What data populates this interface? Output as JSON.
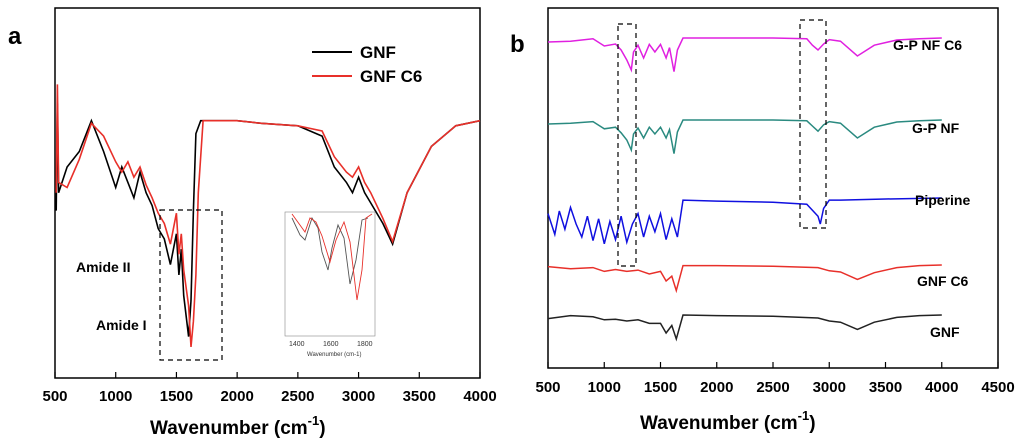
{
  "panel_a": {
    "label": "a",
    "xlabel": "Wavenumber (cm",
    "xlabel_sup": "-1",
    "xlabel_tail": ")",
    "xticks": [
      "500",
      "1000",
      "1500",
      "2000",
      "2500",
      "3000",
      "3500",
      "4000"
    ],
    "legend": [
      {
        "name": "GNF",
        "color": "#000000"
      },
      {
        "name": "GNF C6",
        "color": "#e8302a"
      }
    ],
    "annotations": {
      "amide_ii": "Amide II",
      "amide_i": "Amide I"
    },
    "inset_xticks": [
      "1400",
      "1600",
      "1800"
    ],
    "inset_xlabel": "Wavenumber (cm-1)"
  },
  "panel_b": {
    "label": "b",
    "xlabel": "Wavenumber (cm",
    "xlabel_sup": "-1",
    "xlabel_tail": ")",
    "xticks": [
      "500",
      "1000",
      "1500",
      "2000",
      "2500",
      "3000",
      "3500",
      "4000",
      "4500"
    ],
    "series_labels": [
      {
        "name": "G-P NF C6",
        "color": "#e020e0"
      },
      {
        "name": "G-P NF",
        "color": "#2a8a80"
      },
      {
        "name": "Piperine",
        "color": "#1010e0"
      },
      {
        "name": "GNF C6",
        "color": "#e8302a"
      },
      {
        "name": "GNF",
        "color": "#222222"
      }
    ]
  },
  "chart_data": [
    {
      "type": "line",
      "title": "",
      "xlabel": "Wavenumber (cm-1)",
      "ylabel": "",
      "xlim": [
        500,
        4000
      ],
      "grid": false,
      "legend_position": "top-right",
      "series": [
        {
          "name": "GNF",
          "color": "#000000",
          "x": [
            510,
            520,
            530,
            600,
            700,
            800,
            900,
            1000,
            1050,
            1100,
            1150,
            1200,
            1250,
            1300,
            1350,
            1400,
            1450,
            1500,
            1520,
            1540,
            1560,
            1600,
            1620,
            1640,
            1660,
            1700,
            1800,
            2000,
            2200,
            2500,
            2700,
            2800,
            2900,
            2950,
            3000,
            3050,
            3100,
            3200,
            3280,
            3400,
            3600,
            3800,
            4000
          ],
          "y": [
            0.55,
            0.95,
            0.62,
            0.72,
            0.78,
            0.9,
            0.78,
            0.64,
            0.72,
            0.66,
            0.6,
            0.7,
            0.62,
            0.57,
            0.48,
            0.44,
            0.34,
            0.46,
            0.3,
            0.4,
            0.22,
            0.06,
            0.2,
            0.55,
            0.85,
            0.9,
            0.9,
            0.9,
            0.89,
            0.88,
            0.84,
            0.72,
            0.66,
            0.62,
            0.68,
            0.62,
            0.58,
            0.5,
            0.42,
            0.62,
            0.8,
            0.88,
            0.9
          ]
        },
        {
          "name": "GNF C6",
          "color": "#e8302a",
          "x": [
            510,
            520,
            530,
            600,
            700,
            800,
            900,
            1000,
            1050,
            1100,
            1150,
            1200,
            1250,
            1300,
            1350,
            1400,
            1450,
            1500,
            1520,
            1540,
            1560,
            1600,
            1620,
            1640,
            1660,
            1680,
            1720,
            1800,
            2000,
            2200,
            2500,
            2700,
            2800,
            2900,
            2950,
            3000,
            3050,
            3100,
            3200,
            3280,
            3400,
            3600,
            3800,
            4000
          ],
          "y": [
            0.62,
            0.99,
            0.66,
            0.64,
            0.75,
            0.89,
            0.84,
            0.74,
            0.7,
            0.74,
            0.68,
            0.72,
            0.65,
            0.6,
            0.54,
            0.5,
            0.42,
            0.54,
            0.38,
            0.46,
            0.32,
            0.18,
            0.02,
            0.12,
            0.3,
            0.62,
            0.9,
            0.9,
            0.9,
            0.89,
            0.88,
            0.86,
            0.76,
            0.7,
            0.68,
            0.72,
            0.66,
            0.62,
            0.52,
            0.43,
            0.62,
            0.8,
            0.88,
            0.9
          ]
        }
      ]
    },
    {
      "type": "line",
      "title": "",
      "xlabel": "Wavenumber (cm-1)",
      "ylabel": "",
      "xlim": [
        500,
        4500
      ],
      "grid": false,
      "series": [
        {
          "name": "G-P NF C6",
          "color": "#e020e0",
          "offset": 4,
          "x": [
            500,
            700,
            900,
            1000,
            1100,
            1150,
            1200,
            1240,
            1260,
            1300,
            1350,
            1400,
            1450,
            1500,
            1550,
            1580,
            1620,
            1650,
            1700,
            2000,
            2500,
            2800,
            2850,
            2900,
            2950,
            3000,
            3100,
            3250,
            3400,
            3600,
            3800,
            4000
          ],
          "y": [
            0.8,
            0.82,
            0.88,
            0.7,
            0.75,
            0.6,
            0.35,
            0.1,
            0.55,
            0.72,
            0.4,
            0.74,
            0.55,
            0.74,
            0.4,
            0.66,
            0.06,
            0.6,
            0.9,
            0.9,
            0.9,
            0.88,
            0.72,
            0.6,
            0.75,
            0.86,
            0.82,
            0.45,
            0.72,
            0.85,
            0.88,
            0.9
          ]
        },
        {
          "name": "G-P NF",
          "color": "#2a8a80",
          "offset": 3,
          "x": [
            500,
            700,
            900,
            1000,
            1100,
            1150,
            1200,
            1240,
            1260,
            1300,
            1350,
            1400,
            1450,
            1500,
            1550,
            1580,
            1620,
            1650,
            1700,
            2000,
            2500,
            2800,
            2850,
            2900,
            2950,
            3000,
            3100,
            3250,
            3400,
            3600,
            3800,
            4000
          ],
          "y": [
            0.8,
            0.82,
            0.86,
            0.68,
            0.72,
            0.58,
            0.4,
            0.15,
            0.55,
            0.7,
            0.45,
            0.72,
            0.55,
            0.72,
            0.45,
            0.66,
            0.06,
            0.6,
            0.9,
            0.9,
            0.9,
            0.88,
            0.75,
            0.62,
            0.78,
            0.86,
            0.82,
            0.45,
            0.72,
            0.85,
            0.88,
            0.9
          ]
        },
        {
          "name": "Piperine",
          "color": "#1010e0",
          "offset": 2,
          "x": [
            500,
            560,
            600,
            650,
            700,
            750,
            800,
            850,
            900,
            950,
            1000,
            1050,
            1100,
            1150,
            1200,
            1250,
            1300,
            1350,
            1400,
            1450,
            1500,
            1550,
            1600,
            1650,
            1700,
            2000,
            2500,
            2800,
            2900,
            2920,
            2950,
            3000,
            3100,
            3500,
            4000
          ],
          "y": [
            0.6,
            0.2,
            0.65,
            0.3,
            0.72,
            0.4,
            0.15,
            0.55,
            0.08,
            0.5,
            0.02,
            0.45,
            0.1,
            0.55,
            0.05,
            0.4,
            0.6,
            0.15,
            0.55,
            0.25,
            0.6,
            0.1,
            0.5,
            0.15,
            0.86,
            0.84,
            0.82,
            0.78,
            0.55,
            0.4,
            0.7,
            0.86,
            0.86,
            0.88,
            0.9
          ]
        },
        {
          "name": "GNF C6",
          "color": "#e8302a",
          "offset": 1,
          "x": [
            500,
            700,
            900,
            1000,
            1100,
            1200,
            1300,
            1400,
            1500,
            1550,
            1600,
            1640,
            1700,
            2000,
            2500,
            2900,
            3000,
            3100,
            3250,
            3400,
            3600,
            3800,
            4000
          ],
          "y": [
            0.85,
            0.78,
            0.82,
            0.7,
            0.76,
            0.7,
            0.74,
            0.62,
            0.7,
            0.4,
            0.55,
            0.1,
            0.88,
            0.88,
            0.86,
            0.82,
            0.72,
            0.68,
            0.45,
            0.66,
            0.82,
            0.88,
            0.9
          ]
        },
        {
          "name": "GNF",
          "color": "#222222",
          "offset": 0,
          "x": [
            500,
            700,
            900,
            1000,
            1100,
            1200,
            1300,
            1400,
            1500,
            1550,
            1600,
            1640,
            1700,
            2000,
            2500,
            2900,
            3000,
            3100,
            3250,
            3400,
            3600,
            3800,
            4000
          ],
          "y": [
            0.78,
            0.88,
            0.84,
            0.74,
            0.76,
            0.7,
            0.74,
            0.62,
            0.62,
            0.3,
            0.55,
            0.1,
            0.9,
            0.88,
            0.86,
            0.8,
            0.7,
            0.66,
            0.42,
            0.66,
            0.82,
            0.88,
            0.9
          ]
        }
      ]
    }
  ]
}
